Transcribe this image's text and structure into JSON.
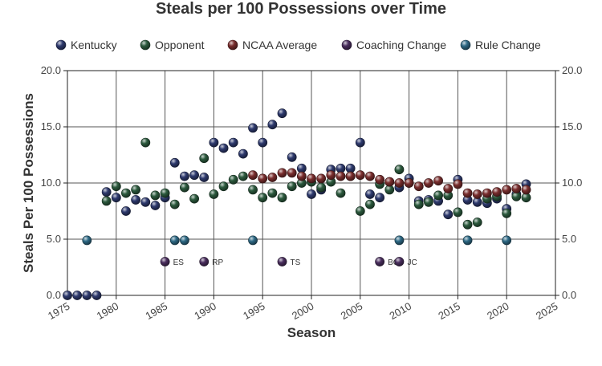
{
  "chart_data": {
    "type": "scatter",
    "title": "Steals per 100 Possessions over Time",
    "xlabel": "Season",
    "ylabel": "Steals Per 100 Possessions",
    "xlim": [
      1975,
      2025
    ],
    "ylim": [
      0,
      20
    ],
    "x_ticks": [
      "1975",
      "1980",
      "1985",
      "1990",
      "1995",
      "2000",
      "2005",
      "2010",
      "2015",
      "2020",
      "2025"
    ],
    "y_ticks": [
      "0.0",
      "5.0",
      "10.0",
      "15.0",
      "20.0"
    ],
    "grid": true,
    "legend_position": "top",
    "series": [
      {
        "name": "Kentucky",
        "color": "#2e3a6e",
        "points": [
          [
            1975,
            0.0
          ],
          [
            1976,
            0.0
          ],
          [
            1977,
            0.0
          ],
          [
            1978,
            0.0
          ],
          [
            1979,
            9.2
          ],
          [
            1980,
            8.7
          ],
          [
            1981,
            7.5
          ],
          [
            1982,
            8.5
          ],
          [
            1983,
            8.3
          ],
          [
            1984,
            8.0
          ],
          [
            1985,
            8.7
          ],
          [
            1986,
            11.8
          ],
          [
            1987,
            10.6
          ],
          [
            1988,
            10.7
          ],
          [
            1989,
            10.5
          ],
          [
            1990,
            13.6
          ],
          [
            1991,
            13.1
          ],
          [
            1992,
            13.6
          ],
          [
            1993,
            12.6
          ],
          [
            1994,
            14.9
          ],
          [
            1995,
            13.6
          ],
          [
            1996,
            15.2
          ],
          [
            1997,
            16.2
          ],
          [
            1998,
            12.3
          ],
          [
            1999,
            11.3
          ],
          [
            2000,
            9.0
          ],
          [
            2001,
            9.4
          ],
          [
            2002,
            11.2
          ],
          [
            2003,
            11.3
          ],
          [
            2004,
            11.3
          ],
          [
            2005,
            13.6
          ],
          [
            2006,
            9.0
          ],
          [
            2007,
            8.7
          ],
          [
            2008,
            10.1
          ],
          [
            2009,
            9.6
          ],
          [
            2010,
            10.4
          ],
          [
            2011,
            8.4
          ],
          [
            2012,
            8.5
          ],
          [
            2013,
            8.4
          ],
          [
            2014,
            7.2
          ],
          [
            2015,
            10.3
          ],
          [
            2016,
            8.5
          ],
          [
            2017,
            8.3
          ],
          [
            2018,
            8.2
          ],
          [
            2019,
            8.6
          ],
          [
            2020,
            7.7
          ],
          [
            2021,
            9.0
          ],
          [
            2022,
            9.9
          ]
        ]
      },
      {
        "name": "Opponent",
        "color": "#2c5a3e",
        "points": [
          [
            1979,
            8.4
          ],
          [
            1980,
            9.7
          ],
          [
            1981,
            9.1
          ],
          [
            1982,
            9.4
          ],
          [
            1983,
            13.6
          ],
          [
            1984,
            8.9
          ],
          [
            1985,
            9.1
          ],
          [
            1986,
            8.1
          ],
          [
            1987,
            9.6
          ],
          [
            1988,
            8.6
          ],
          [
            1989,
            12.2
          ],
          [
            1990,
            9.0
          ],
          [
            1991,
            9.7
          ],
          [
            1992,
            10.3
          ],
          [
            1993,
            10.6
          ],
          [
            1994,
            9.4
          ],
          [
            1995,
            8.7
          ],
          [
            1996,
            9.1
          ],
          [
            1997,
            8.7
          ],
          [
            1998,
            9.7
          ],
          [
            1999,
            10.0
          ],
          [
            2000,
            10.1
          ],
          [
            2001,
            9.6
          ],
          [
            2002,
            10.1
          ],
          [
            2003,
            9.1
          ],
          [
            2004,
            10.6
          ],
          [
            2005,
            7.5
          ],
          [
            2006,
            8.1
          ],
          [
            2007,
            9.9
          ],
          [
            2008,
            9.4
          ],
          [
            2009,
            11.2
          ],
          [
            2010,
            10.0
          ],
          [
            2011,
            8.1
          ],
          [
            2012,
            8.3
          ],
          [
            2013,
            8.9
          ],
          [
            2014,
            8.9
          ],
          [
            2015,
            7.4
          ],
          [
            2016,
            6.3
          ],
          [
            2017,
            6.5
          ],
          [
            2018,
            8.6
          ],
          [
            2019,
            8.8
          ],
          [
            2020,
            7.3
          ],
          [
            2021,
            8.8
          ],
          [
            2022,
            8.7
          ]
        ]
      },
      {
        "name": "NCAA Average",
        "color": "#7a2e2e",
        "points": [
          [
            1994,
            10.7
          ],
          [
            1995,
            10.4
          ],
          [
            1996,
            10.5
          ],
          [
            1997,
            10.9
          ],
          [
            1998,
            10.9
          ],
          [
            1999,
            10.6
          ],
          [
            2000,
            10.4
          ],
          [
            2001,
            10.4
          ],
          [
            2002,
            10.7
          ],
          [
            2003,
            10.6
          ],
          [
            2004,
            10.6
          ],
          [
            2005,
            10.7
          ],
          [
            2006,
            10.6
          ],
          [
            2007,
            10.3
          ],
          [
            2008,
            10.1
          ],
          [
            2009,
            10.0
          ],
          [
            2010,
            10.0
          ],
          [
            2011,
            9.7
          ],
          [
            2012,
            10.0
          ],
          [
            2013,
            10.2
          ],
          [
            2014,
            9.5
          ],
          [
            2015,
            9.9
          ],
          [
            2016,
            9.1
          ],
          [
            2017,
            9.0
          ],
          [
            2018,
            9.1
          ],
          [
            2019,
            9.2
          ],
          [
            2020,
            9.4
          ],
          [
            2021,
            9.5
          ],
          [
            2022,
            9.4
          ]
        ]
      },
      {
        "name": "Coaching Change",
        "color": "#4a2e5e",
        "points": [
          [
            1985,
            3.0
          ],
          [
            1989,
            3.0
          ],
          [
            1997,
            3.0
          ],
          [
            2007,
            3.0
          ],
          [
            2009,
            3.0
          ]
        ],
        "labels": [
          "ES",
          "RP",
          "TS",
          "BG",
          "JC"
        ]
      },
      {
        "name": "Rule Change",
        "color": "#2e6a86",
        "points": [
          [
            1977,
            4.9
          ],
          [
            1986,
            4.9
          ],
          [
            1987,
            4.9
          ],
          [
            1994,
            4.9
          ],
          [
            2009,
            4.9
          ],
          [
            2016,
            4.9
          ],
          [
            2020,
            4.9
          ]
        ]
      }
    ]
  }
}
